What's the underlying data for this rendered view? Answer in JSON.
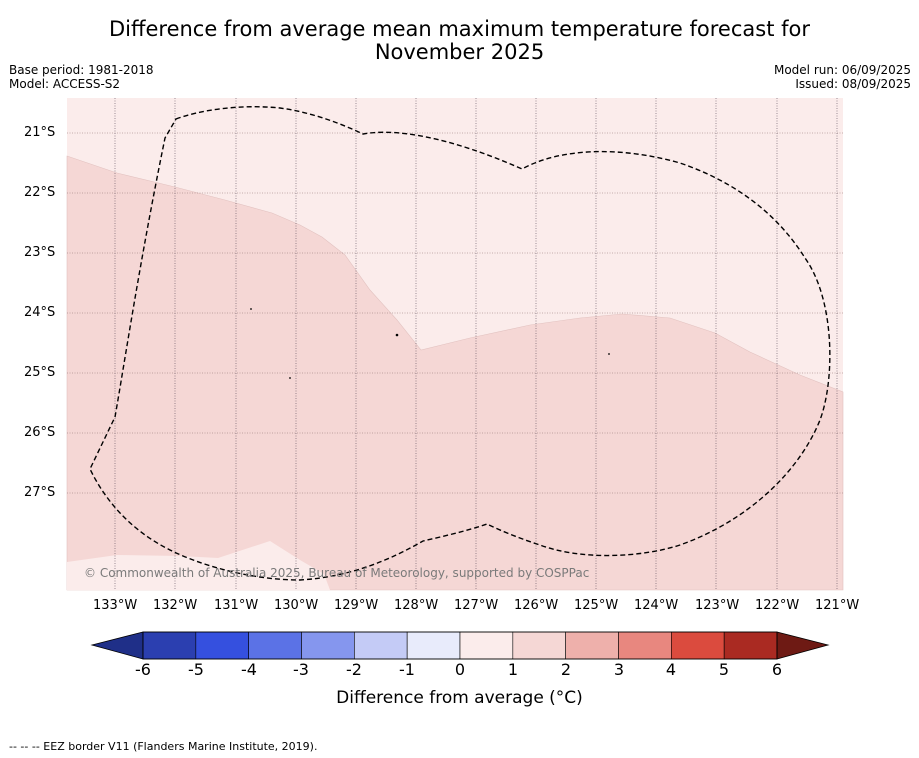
{
  "title_line1": "Difference from average mean maximum temperature forecast for",
  "title_line2": "November 2025",
  "meta": {
    "base_period": "Base period: 1981-2018",
    "model": "Model: ACCESS-S2",
    "model_run": "Model run: 06/09/2025",
    "issued": "Issued: 08/09/2025"
  },
  "axes": {
    "lat_labels": [
      "21°S",
      "22°S",
      "23°S",
      "24°S",
      "25°S",
      "26°S",
      "27°S"
    ],
    "lon_labels": [
      "133°W",
      "132°W",
      "131°W",
      "130°W",
      "129°W",
      "128°W",
      "127°W",
      "126°W",
      "125°W",
      "124°W",
      "123°W",
      "122°W",
      "121°W"
    ]
  },
  "colorbar": {
    "ticks": [
      "-6",
      "-5",
      "-4",
      "-3",
      "-2",
      "-1",
      "0",
      "1",
      "2",
      "3",
      "4",
      "5",
      "6"
    ],
    "colors": [
      "#1f2f88",
      "#2b3fb0",
      "#3550df",
      "#5b72e6",
      "#8596ee",
      "#c4cbf6",
      "#e8ebfb",
      "#fbeceb",
      "#f5d7d5",
      "#eeb0ab",
      "#e8877f",
      "#db4b3e",
      "#aa2a22",
      "#6e1a14"
    ],
    "title": "Difference from average (°C)"
  },
  "map_colors": {
    "anomaly_0_1": "#fbeceb",
    "anomaly_1_2": "#f5d7d5"
  },
  "copyright": "© Commonwealth of Australia 2025, Bureau of Meteorology, supported by COSPPac",
  "footnote": "-- -- -- EEZ border V11 (Flanders Marine Institute, 2019)."
}
